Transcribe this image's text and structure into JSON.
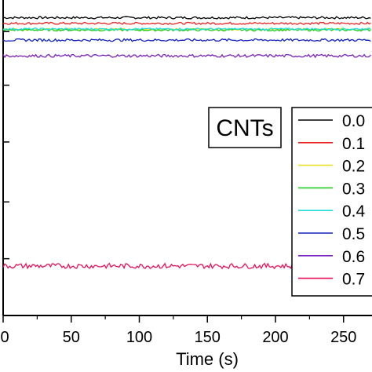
{
  "chart_data": {
    "type": "line",
    "xlabel": "Time (s)",
    "ylabel": "",
    "title": "",
    "xlim": [
      0,
      270
    ],
    "ylim": [
      0,
      1
    ],
    "x_ticks": [
      0,
      50,
      100,
      150,
      200,
      250
    ],
    "x_tick_labels": [
      "0",
      "50",
      "100",
      "150",
      "200",
      "250"
    ],
    "legend_title": "CNTs",
    "legend_position": "right",
    "series": [
      {
        "name": "0.0",
        "color": "#000000",
        "level": 0.944,
        "noise": 0.0035
      },
      {
        "name": "0.1",
        "color": "#ee2222",
        "level": 0.926,
        "noise": 0.0035
      },
      {
        "name": "0.2",
        "color": "#e8e020",
        "level": 0.907,
        "noise": 0.003
      },
      {
        "name": "0.3",
        "color": "#22cc22",
        "level": 0.905,
        "noise": 0.0035
      },
      {
        "name": "0.4",
        "color": "#22dddd",
        "level": 0.908,
        "noise": 0.003
      },
      {
        "name": "0.5",
        "color": "#1122bb",
        "level": 0.873,
        "noise": 0.004
      },
      {
        "name": "0.6",
        "color": "#7a22bb",
        "level": 0.823,
        "noise": 0.0045
      },
      {
        "name": "0.7",
        "color": "#e8105a",
        "level": 0.157,
        "noise": 0.008
      }
    ]
  }
}
